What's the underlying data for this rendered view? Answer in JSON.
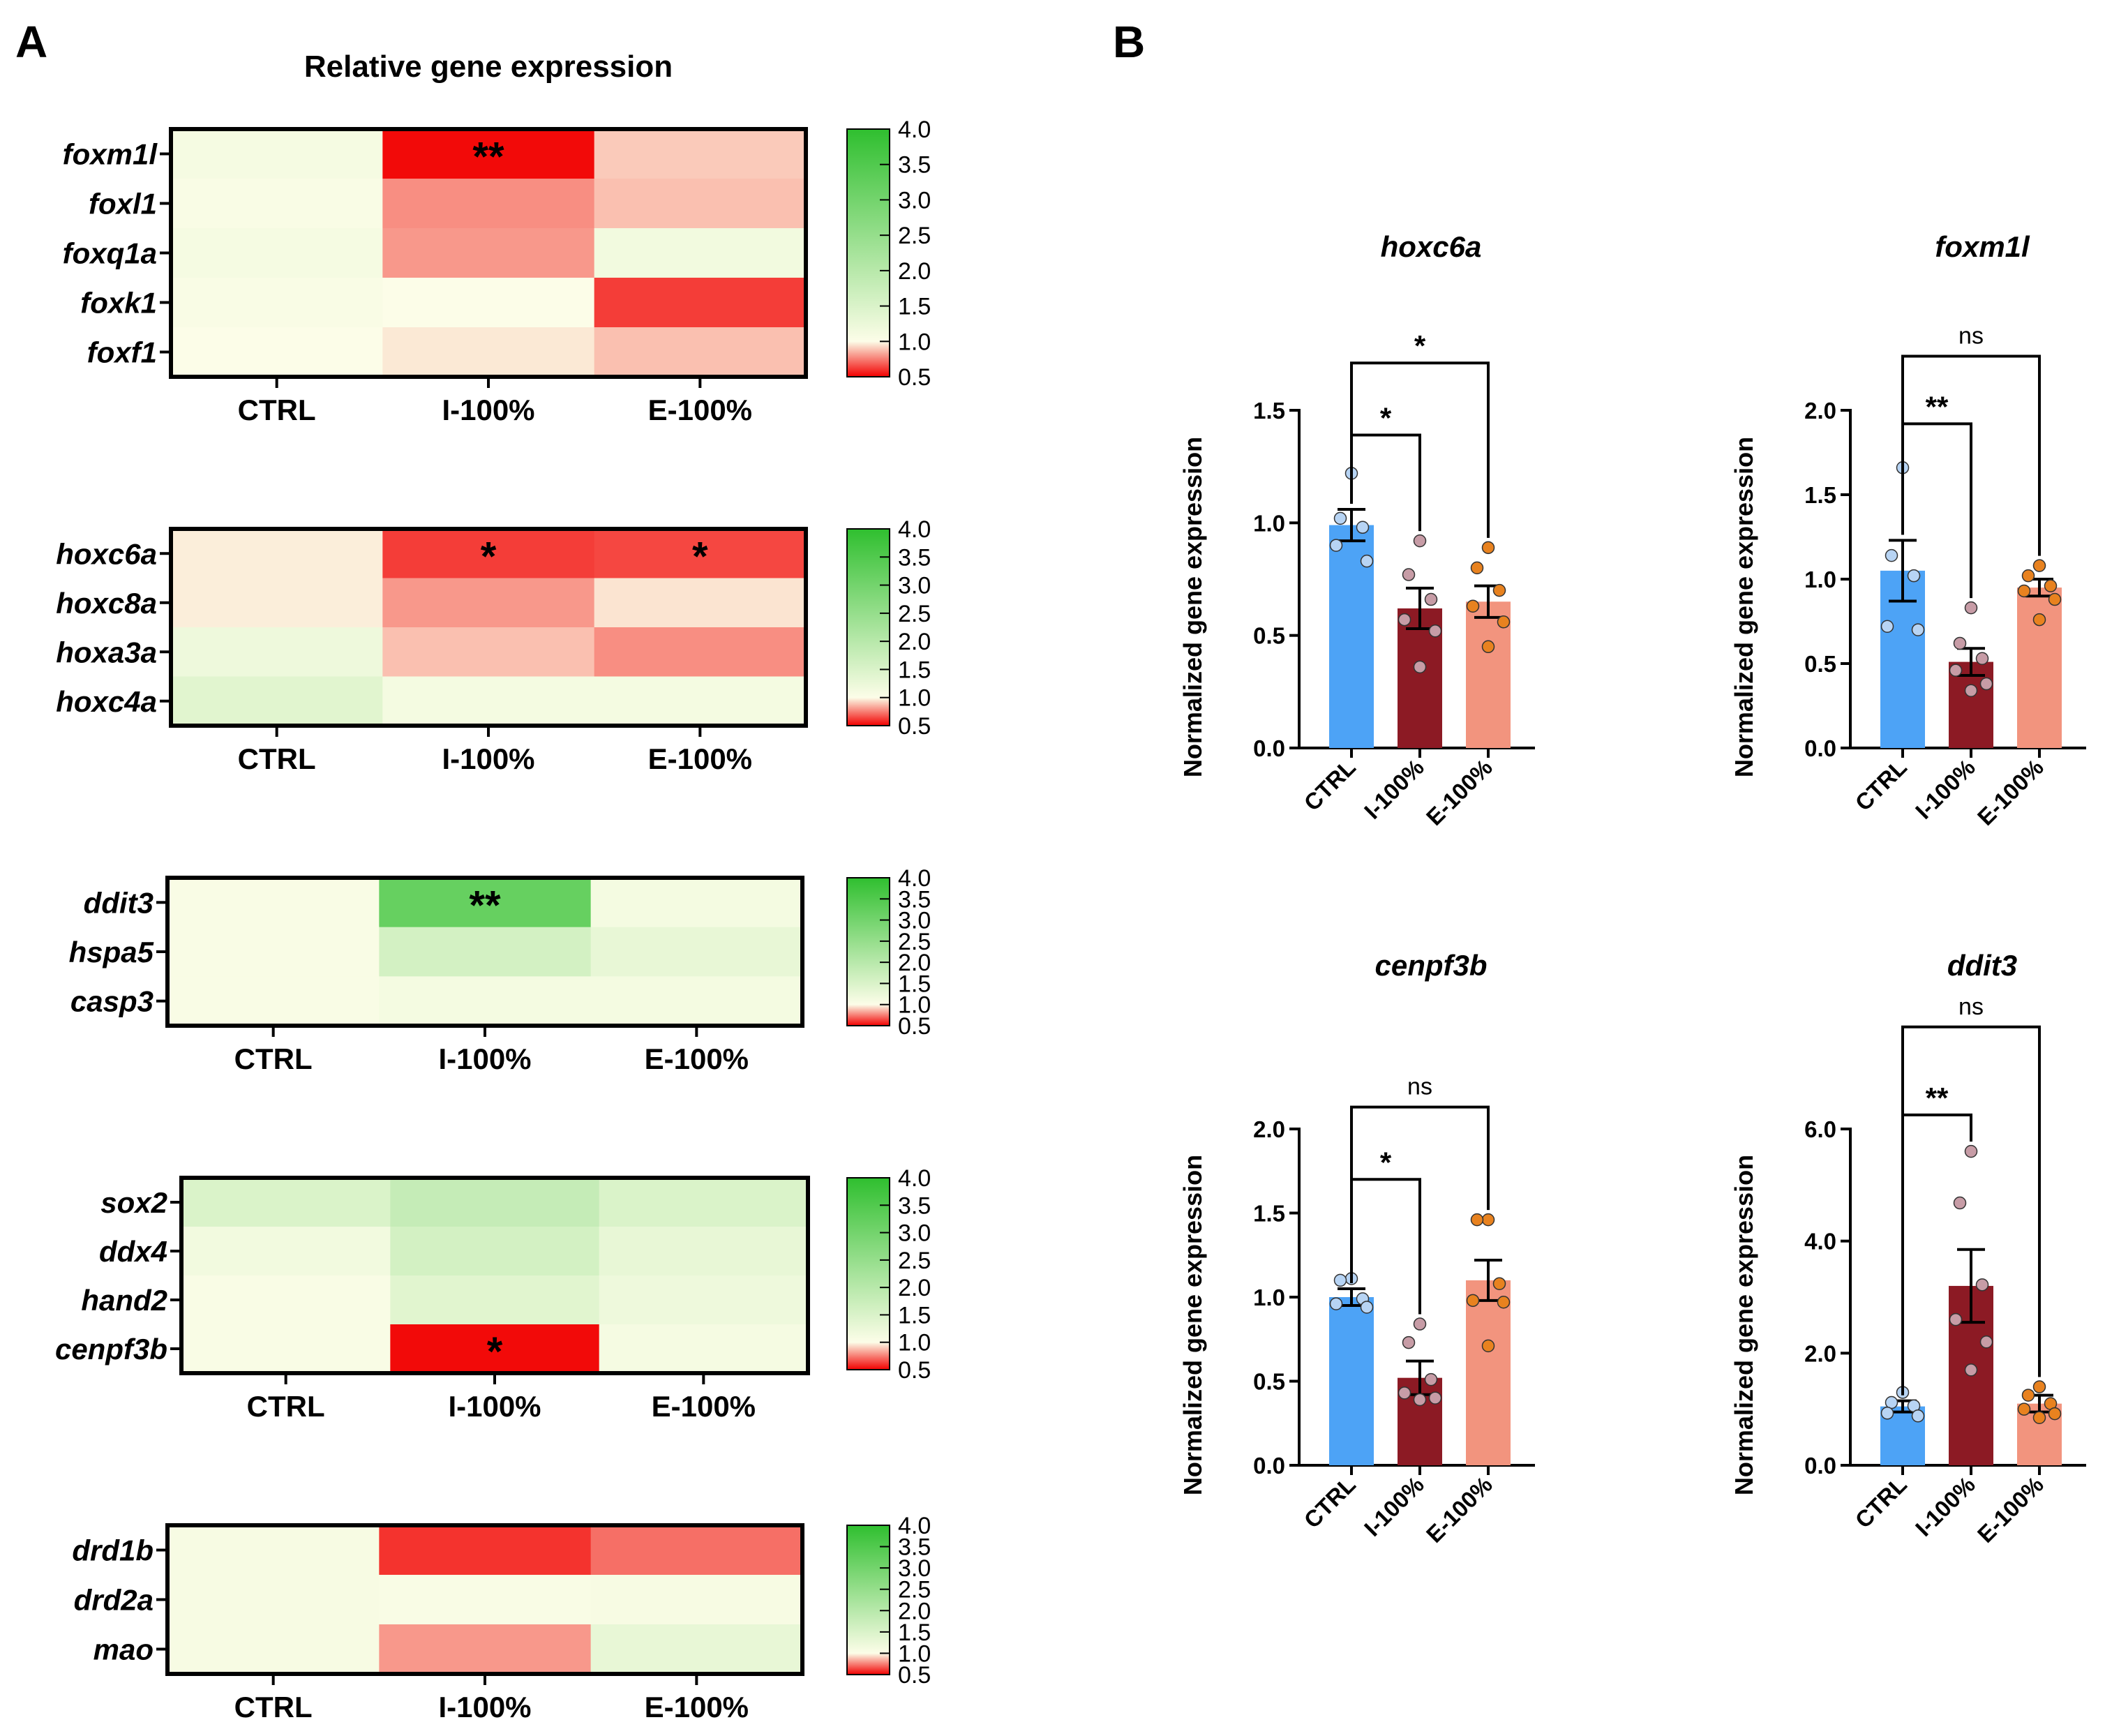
{
  "panel_a_label": "A",
  "panel_b_label": "B",
  "heatmap_title": "Relative gene expression",
  "colors": {
    "green": "#2fbf2f",
    "white": "#fcfde8",
    "red": "#f20000",
    "ctrl_bar": "#4da3f6",
    "i100_bar": "#8c1a24",
    "e100_bar": "#f2947e",
    "ctrl_dot": "#b7d4f4",
    "i100_dot": "#c79ca6",
    "e100_dot": "#e8821f"
  },
  "chart_data": [
    {
      "type": "heatmap",
      "columns": [
        "CTRL",
        "I-100%",
        "E-100%"
      ],
      "rows": [
        "foxm1l",
        "foxl1",
        "foxq1a",
        "foxk1",
        "foxf1"
      ],
      "values": [
        [
          1.1,
          0.52,
          0.9
        ],
        [
          1.05,
          0.78,
          0.88
        ],
        [
          1.1,
          0.8,
          1.15
        ],
        [
          1.05,
          1.0,
          0.62
        ],
        [
          1.0,
          0.96,
          0.88
        ]
      ],
      "significance": [
        [
          "",
          "**",
          ""
        ],
        [
          "",
          "",
          ""
        ],
        [
          "",
          "",
          ""
        ],
        [
          "",
          "",
          ""
        ],
        [
          "",
          "",
          ""
        ]
      ],
      "colorbar": {
        "min": 0.5,
        "max": 4.0,
        "ticks": [
          "4.0",
          "3.5",
          "3.0",
          "2.5",
          "2.0",
          "1.5",
          "1.0",
          "0.5"
        ]
      }
    },
    {
      "type": "heatmap",
      "columns": [
        "CTRL",
        "I-100%",
        "E-100%"
      ],
      "rows": [
        "hoxc6a",
        "hoxc8a",
        "hoxa3a",
        "hoxc4a"
      ],
      "values": [
        [
          0.97,
          0.62,
          0.64
        ],
        [
          0.97,
          0.8,
          0.95
        ],
        [
          1.2,
          0.88,
          0.78
        ],
        [
          1.4,
          1.12,
          1.12
        ]
      ],
      "significance": [
        [
          "",
          "*",
          "*"
        ],
        [
          "",
          "",
          ""
        ],
        [
          "",
          "",
          ""
        ],
        [
          "",
          "",
          ""
        ]
      ],
      "colorbar": {
        "min": 0.5,
        "max": 4.0,
        "ticks": [
          "4.0",
          "3.5",
          "3.0",
          "2.5",
          "2.0",
          "1.5",
          "1.0",
          "0.5"
        ]
      }
    },
    {
      "type": "heatmap",
      "columns": [
        "CTRL",
        "I-100%",
        "E-100%"
      ],
      "rows": [
        "ddit3",
        "hspa5",
        "casp3"
      ],
      "values": [
        [
          1.05,
          3.2,
          1.12
        ],
        [
          1.05,
          1.6,
          1.3
        ],
        [
          1.05,
          1.12,
          1.12
        ]
      ],
      "significance": [
        [
          "",
          "**",
          ""
        ],
        [
          "",
          "",
          ""
        ],
        [
          "",
          "",
          ""
        ]
      ],
      "colorbar": {
        "min": 0.5,
        "max": 4.0,
        "ticks": [
          "4.0",
          "3.5",
          "3.0",
          "2.5",
          "2.0",
          "1.5",
          "1.0",
          "0.5"
        ]
      }
    },
    {
      "type": "heatmap",
      "columns": [
        "CTRL",
        "I-100%",
        "E-100%"
      ],
      "rows": [
        "sox2",
        "ddx4",
        "hand2",
        "cenpf3b"
      ],
      "values": [
        [
          1.5,
          1.8,
          1.5
        ],
        [
          1.15,
          1.6,
          1.3
        ],
        [
          1.05,
          1.4,
          1.2
        ],
        [
          1.05,
          0.52,
          1.1
        ]
      ],
      "significance": [
        [
          "",
          "",
          ""
        ],
        [
          "",
          "",
          ""
        ],
        [
          "",
          "",
          ""
        ],
        [
          "",
          "*",
          ""
        ]
      ],
      "colorbar": {
        "min": 0.5,
        "max": 4.0,
        "ticks": [
          "4.0",
          "3.5",
          "3.0",
          "2.5",
          "2.0",
          "1.5",
          "1.0",
          "0.5"
        ]
      }
    },
    {
      "type": "heatmap",
      "columns": [
        "CTRL",
        "I-100%",
        "E-100%"
      ],
      "rows": [
        "drd1b",
        "drd2a",
        "mao"
      ],
      "values": [
        [
          1.08,
          0.6,
          0.72
        ],
        [
          1.08,
          1.05,
          1.08
        ],
        [
          1.08,
          0.8,
          1.3
        ]
      ],
      "significance": [
        [
          "",
          "",
          ""
        ],
        [
          "",
          "",
          ""
        ],
        [
          "",
          "",
          ""
        ]
      ],
      "colorbar": {
        "min": 0.5,
        "max": 4.0,
        "ticks": [
          "4.0",
          "3.5",
          "3.0",
          "2.5",
          "2.0",
          "1.5",
          "1.0",
          "0.5"
        ]
      }
    },
    {
      "type": "bar",
      "title": "hoxc6a",
      "ylabel": "Normalized gene expression",
      "categories": [
        "CTRL",
        "I-100%",
        "E-100%"
      ],
      "values": [
        0.99,
        0.62,
        0.65
      ],
      "sem": [
        0.07,
        0.09,
        0.07
      ],
      "points": [
        [
          1.22,
          1.02,
          0.98,
          0.9,
          0.83
        ],
        [
          0.92,
          0.77,
          0.66,
          0.57,
          0.52,
          0.36
        ],
        [
          0.89,
          0.8,
          0.7,
          0.63,
          0.56,
          0.45
        ]
      ],
      "ylim": [
        0,
        1.5
      ],
      "yticks": [
        "0.0",
        "0.5",
        "1.0",
        "1.5"
      ],
      "comparisons": [
        {
          "from": 0,
          "to": 1,
          "label": "*",
          "level": 1.39
        },
        {
          "from": 0,
          "to": 2,
          "label": "*",
          "level": 1.71
        }
      ]
    },
    {
      "type": "bar",
      "title": "foxm1l",
      "ylabel": "Normalized gene expression",
      "categories": [
        "CTRL",
        "I-100%",
        "E-100%"
      ],
      "values": [
        1.05,
        0.51,
        0.95
      ],
      "sem": [
        0.18,
        0.08,
        0.05
      ],
      "points": [
        [
          1.66,
          1.14,
          1.02,
          0.72,
          0.7
        ],
        [
          0.83,
          0.62,
          0.53,
          0.46,
          0.38,
          0.34
        ],
        [
          1.08,
          1.02,
          0.96,
          0.93,
          0.88,
          0.76
        ]
      ],
      "ylim": [
        0,
        2.0
      ],
      "yticks": [
        "0.0",
        "0.5",
        "1.0",
        "1.5",
        "2.0"
      ],
      "comparisons": [
        {
          "from": 0,
          "to": 1,
          "label": "**",
          "level": 1.92
        },
        {
          "from": 0,
          "to": 2,
          "label": "ns",
          "level": 2.32
        }
      ]
    },
    {
      "type": "bar",
      "title": "cenpf3b",
      "ylabel": "Normalized gene expression",
      "categories": [
        "CTRL",
        "I-100%",
        "E-100%"
      ],
      "values": [
        1.0,
        0.52,
        1.1
      ],
      "sem": [
        0.05,
        0.1,
        0.12
      ],
      "points": [
        [
          1.11,
          1.1,
          0.99,
          0.96,
          0.94
        ],
        [
          0.84,
          0.73,
          0.51,
          0.43,
          0.4,
          0.39
        ],
        [
          1.46,
          1.46,
          1.08,
          0.98,
          0.97,
          0.71
        ]
      ],
      "ylim": [
        0,
        2.0
      ],
      "yticks": [
        "0.0",
        "0.5",
        "1.0",
        "1.5",
        "2.0"
      ],
      "comparisons": [
        {
          "from": 0,
          "to": 1,
          "label": "*",
          "level": 1.7
        },
        {
          "from": 0,
          "to": 2,
          "label": "ns",
          "level": 2.13
        }
      ]
    },
    {
      "type": "bar",
      "title": "ddit3",
      "ylabel": "Normalized gene expression",
      "categories": [
        "CTRL",
        "I-100%",
        "E-100%"
      ],
      "values": [
        1.05,
        3.2,
        1.1
      ],
      "sem": [
        0.1,
        0.65,
        0.15
      ],
      "points": [
        [
          1.3,
          1.12,
          1.06,
          0.93,
          0.88
        ],
        [
          5.6,
          4.68,
          3.22,
          2.6,
          2.2,
          1.7
        ],
        [
          1.4,
          1.25,
          1.1,
          1.0,
          0.92,
          0.85
        ]
      ],
      "ylim": [
        0,
        6.0
      ],
      "yticks": [
        "0.0",
        "2.0",
        "4.0",
        "6.0"
      ],
      "comparisons": [
        {
          "from": 0,
          "to": 1,
          "label": "**",
          "level": 6.25
        },
        {
          "from": 0,
          "to": 2,
          "label": "ns",
          "level": 7.82
        }
      ]
    }
  ]
}
